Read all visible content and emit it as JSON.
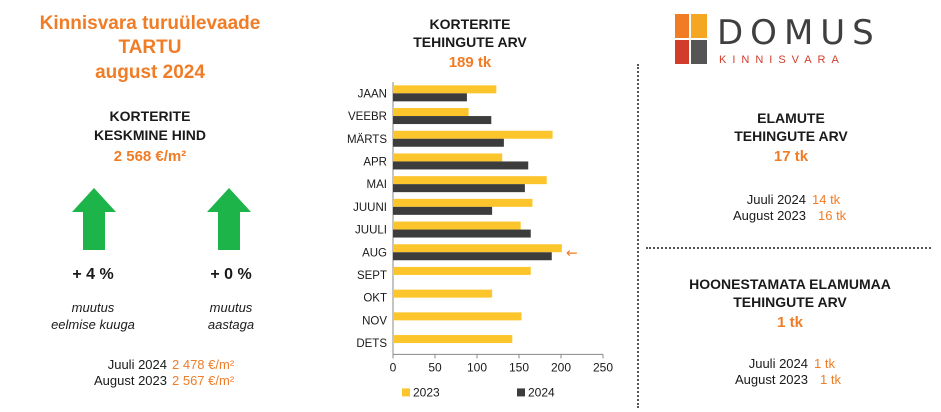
{
  "left": {
    "title_lines": [
      "Kinnisvara turuülevaade",
      "TARTU",
      "august 2024"
    ],
    "price_heading": [
      "KORTERITE",
      "KESKMINE HIND"
    ],
    "price_value": "2 568 €/m²",
    "change_month": {
      "value": "+ 4 %",
      "caption": [
        "muutus",
        "eelmise kuuga"
      ]
    },
    "change_year": {
      "value": "+ 0 %",
      "caption": [
        "muutus",
        "aastaga"
      ]
    },
    "history": [
      {
        "label": "Juuli 2024",
        "value": "2 478 €/m²"
      },
      {
        "label": "August 2023",
        "value": "2 567 €/m²"
      }
    ],
    "arrow_icon": "up-arrow",
    "arrow_color": "#1db44a"
  },
  "chart_heading": [
    "KORTERITE",
    "TEHINGUTE ARV"
  ],
  "chart_value": "189 tk",
  "chart_data": {
    "type": "bar",
    "orientation": "horizontal",
    "categories": [
      "JAAN",
      "VEEBR",
      "MÄRTS",
      "APR",
      "MAI",
      "JUUNI",
      "JUULI",
      "AUG",
      "SEPT",
      "OKT",
      "NOV",
      "DETS"
    ],
    "series": [
      {
        "name": "2023",
        "color": "#fdc52c",
        "values": [
          123,
          90,
          190,
          130,
          183,
          166,
          152,
          201,
          164,
          118,
          153,
          142
        ]
      },
      {
        "name": "2024",
        "color": "#3c3c3c",
        "values": [
          88,
          117,
          132,
          161,
          157,
          118,
          164,
          189,
          null,
          null,
          null,
          null
        ]
      }
    ],
    "xticks": [
      "0",
      "50",
      "100",
      "150",
      "200",
      "250"
    ],
    "xlim": [
      0,
      250
    ],
    "highlight_category": "AUG",
    "highlight_marker": "←",
    "legend_position": "bottom"
  },
  "logo": {
    "brand": "DOMUS",
    "sub": "KINNISVARA",
    "colors": [
      "#f07c26",
      "#d23c2a",
      "#f5a623",
      "#555555"
    ]
  },
  "houses": {
    "heading": [
      "ELAMUTE",
      "TEHINGUTE ARV"
    ],
    "value": "17 tk",
    "history": [
      {
        "label": "Juuli 2024",
        "value": "14 tk"
      },
      {
        "label": "August 2023",
        "value": "16 tk"
      }
    ]
  },
  "land": {
    "heading": [
      "HOONESTAMATA ELAMUMAA",
      "TEHINGUTE ARV"
    ],
    "value": "1 tk",
    "history": [
      {
        "label": "Juuli 2024",
        "value": "1 tk"
      },
      {
        "label": "August 2023",
        "value": "1 tk"
      }
    ]
  }
}
